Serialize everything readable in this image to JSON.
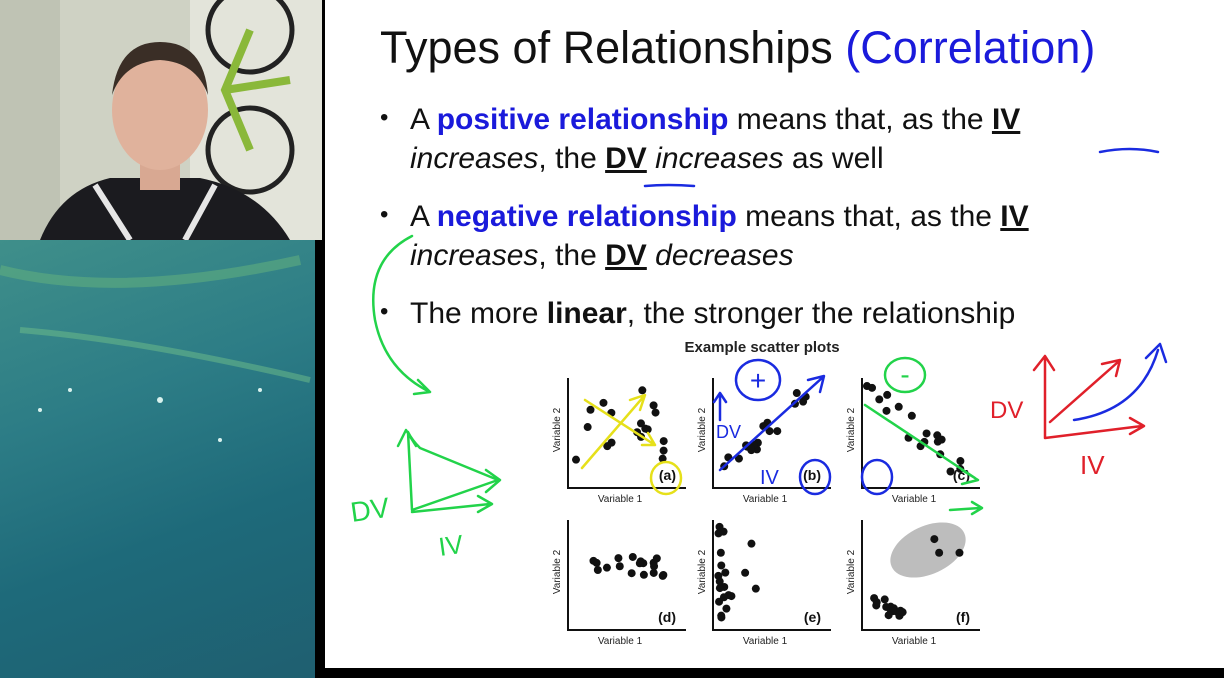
{
  "slide": {
    "title": "Types of Relationships",
    "title_accent": "(Correlation)",
    "bullets": [
      [
        "A",
        "positive relationship",
        "means that, as the",
        "IV",
        "increases",
        ", the",
        "DV",
        "increases",
        "as well"
      ],
      [
        "A",
        "negative relationship",
        "means that, as the",
        "IV",
        "increases",
        ", the",
        "DV",
        "decreases"
      ],
      [
        "The more",
        "linear",
        ", the stronger the relationship"
      ]
    ]
  },
  "figure": {
    "title": "Example scatter plots",
    "x_label": "Variable 1",
    "y_label": "Variable 2",
    "panels": [
      "(a)",
      "(b)",
      "(c)",
      "(d)",
      "(e)",
      "(f)"
    ]
  },
  "annotations": {
    "plus": "+",
    "minus": "-",
    "dv_left": "DV",
    "iv_left": "IV",
    "dv_panel": "DV",
    "iv_panel": "IV",
    "dv_right": "DV",
    "iv_right": "IV"
  }
}
